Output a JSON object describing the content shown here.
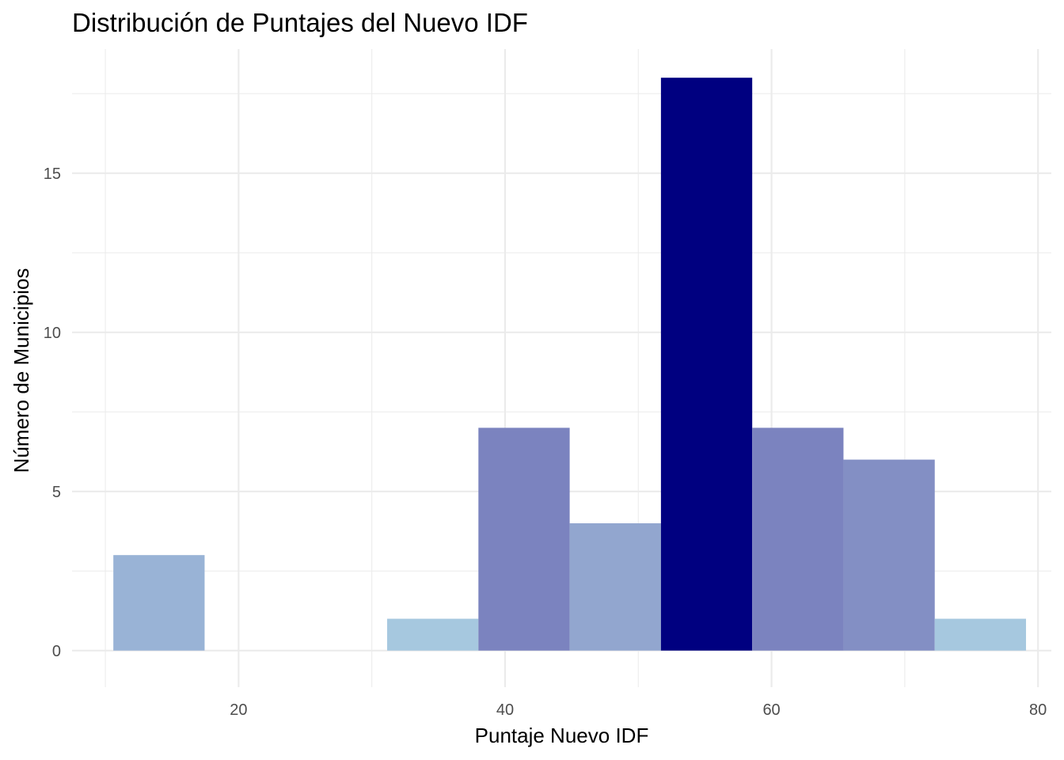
{
  "chart_data": {
    "type": "histogram",
    "title": "Distribución de Puntajes del Nuevo IDF",
    "xlabel": "Puntaje Nuevo IDF",
    "ylabel": "Número de Municipios",
    "xlim": [
      7.5,
      81.0
    ],
    "ylim": [
      -1.15,
      18.9
    ],
    "x_ticks": [
      20,
      40,
      60,
      80
    ],
    "x_tick_labels": [
      "20",
      "40",
      "60",
      "80"
    ],
    "x_minor_ticks": [
      10,
      30,
      50,
      70
    ],
    "y_ticks": [
      0,
      5,
      10,
      15
    ],
    "y_tick_labels": [
      "0",
      "5",
      "10",
      "15"
    ],
    "y_minor_ticks": [
      2.5,
      7.5,
      12.5,
      17.5
    ],
    "grid": true,
    "legend": "none",
    "bins": [
      {
        "x0": 10.6,
        "x1": 17.45,
        "count": 3,
        "color": "#99b3d6"
      },
      {
        "x0": 17.45,
        "x1": 24.3,
        "count": 0,
        "color": "#a6c8df"
      },
      {
        "x0": 24.3,
        "x1": 31.15,
        "count": 0,
        "color": "#a6c8df"
      },
      {
        "x0": 31.15,
        "x1": 38.0,
        "count": 1,
        "color": "#a6c8df"
      },
      {
        "x0": 38.0,
        "x1": 44.85,
        "count": 7,
        "color": "#7b83bf"
      },
      {
        "x0": 44.85,
        "x1": 51.7,
        "count": 4,
        "color": "#92a6cf"
      },
      {
        "x0": 51.7,
        "x1": 58.55,
        "count": 18,
        "color": "#000080"
      },
      {
        "x0": 58.55,
        "x1": 65.4,
        "count": 7,
        "color": "#7b83bf"
      },
      {
        "x0": 65.4,
        "x1": 72.25,
        "count": 6,
        "color": "#838fc4"
      },
      {
        "x0": 72.25,
        "x1": 79.1,
        "count": 1,
        "color": "#a6c8df"
      }
    ]
  }
}
